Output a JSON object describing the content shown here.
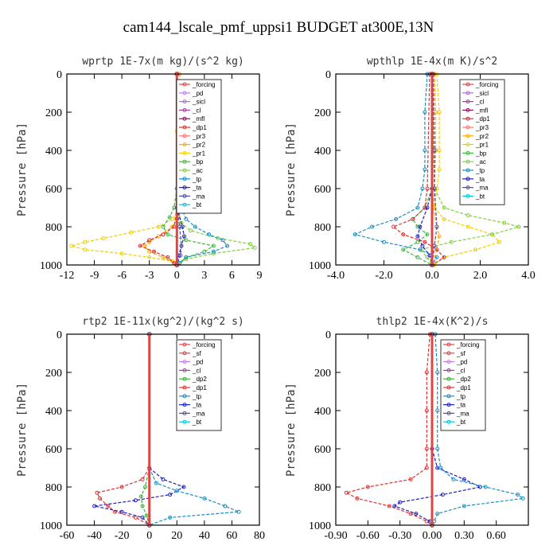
{
  "figure": {
    "title": "cam144_lscale_pmf_uppsi1  BUDGET at300E,13N"
  },
  "colors": {
    "_forcing": "#e04545",
    "_pd": "#c080e0",
    "_sicl": "#b070d0",
    "_cl": "#a040a0",
    "_mfl": "#901060",
    "_dp1": "#e03030",
    "_dp3": "#ff5050",
    "_pr3": "#ff7070",
    "_pr2": "#ffaa00",
    "_pr1": "#f0d000",
    "_bp": "#40b840",
    "_ac": "#80d040",
    "_tp": "#1890c8",
    "_ta": "#2020c0",
    "_ma": "#5050a0",
    "_bt": "#00c8d8",
    "_sf": "#e04545",
    "_dp2": "#38b038"
  },
  "chart_data": [
    {
      "type": "line",
      "title": "wprtp  1E-7x(m kg)/(s^2 kg)",
      "ylabel": "Pressure [hPa]",
      "xlim": [
        -12,
        9
      ],
      "ylim": [
        1000,
        0
      ],
      "xticks": [
        -12,
        -9,
        -6,
        -3,
        0,
        3,
        6,
        9
      ],
      "xtick_labels": [
        "-12",
        "-9",
        "-6",
        "-3",
        "0",
        "3",
        "6",
        "9"
      ],
      "yticks": [
        0,
        200,
        400,
        600,
        800,
        1000
      ],
      "ytick_labels": [
        "0",
        "200",
        "400",
        "600",
        "800",
        "1000"
      ],
      "legend": [
        "_forcing",
        "_pd",
        "_sicl",
        "_cl",
        "_mfl",
        "_dp1",
        "_pr3",
        "_pr2",
        "_pr1",
        "_bp",
        "_ac",
        "_tp",
        "_ta",
        "_ma",
        "_bt"
      ],
      "series": [
        {
          "name": "_pr1",
          "pressure": [
            0,
            300,
            600,
            700,
            760,
            800,
            830,
            860,
            880,
            900,
            920,
            940,
            960,
            980,
            1000
          ],
          "values": [
            0,
            0,
            0.1,
            0.3,
            -0.5,
            -2.0,
            -5.0,
            -8.0,
            -10.0,
            -11.5,
            -10.0,
            -6.0,
            -3.0,
            -0.5,
            0
          ]
        },
        {
          "name": "_pr2",
          "pressure": [
            0,
            300,
            500,
            600,
            700,
            750,
            800,
            850,
            880,
            900,
            930,
            960,
            990,
            1000
          ],
          "values": [
            0.3,
            0.4,
            0.5,
            0.5,
            0.4,
            0.2,
            -0.5,
            -2.0,
            -3.0,
            -3.5,
            -3.0,
            -1.5,
            -0.3,
            0
          ]
        },
        {
          "name": "_dp1",
          "pressure": [
            0,
            700,
            800,
            840,
            870,
            900,
            930,
            960,
            990,
            1000
          ],
          "values": [
            0,
            0,
            -0.3,
            -1.5,
            -3.0,
            -4.0,
            -2.5,
            -1.0,
            -0.3,
            0
          ]
        },
        {
          "name": "_bp",
          "pressure": [
            0,
            600,
            700,
            750,
            800,
            840,
            870,
            900,
            930,
            960,
            990,
            1000
          ],
          "values": [
            0,
            0,
            -0.3,
            -0.8,
            -1.5,
            -1.0,
            1.0,
            4.0,
            3.0,
            1.0,
            0.3,
            0
          ]
        },
        {
          "name": "_ac",
          "pressure": [
            0,
            700,
            780,
            820,
            860,
            890,
            910,
            940,
            970,
            1000
          ],
          "values": [
            0,
            0.1,
            0.5,
            1.5,
            4.5,
            8.0,
            8.5,
            4.0,
            1.0,
            0
          ]
        },
        {
          "name": "_tp",
          "pressure": [
            0,
            600,
            700,
            760,
            800,
            840,
            870,
            900,
            930,
            960,
            990,
            1000
          ],
          "values": [
            0,
            0,
            0.5,
            1.0,
            2.0,
            3.5,
            5.0,
            5.5,
            4.0,
            1.0,
            0.3,
            0
          ]
        },
        {
          "name": "_ta",
          "pressure": [
            0,
            700,
            800,
            850,
            900,
            950,
            1000
          ],
          "values": [
            0,
            0,
            0.6,
            0.8,
            0.5,
            0.2,
            0
          ]
        },
        {
          "name": "_ma",
          "pressure": [
            0,
            700,
            800,
            900,
            950,
            1000
          ],
          "values": [
            0,
            0,
            0.3,
            0.5,
            0.4,
            0
          ]
        },
        {
          "name": "_forcing",
          "pressure": [
            0,
            1000
          ],
          "values": [
            0,
            0
          ]
        }
      ]
    },
    {
      "type": "line",
      "title": "wpthlp  1E-4x(m K)/s^2",
      "ylabel": "Pressure [hPa]",
      "xlim": [
        -4,
        4
      ],
      "ylim": [
        1000,
        0
      ],
      "xticks": [
        -4,
        -2,
        0,
        2,
        4
      ],
      "xtick_labels": [
        "-4.0",
        "-2.0",
        "0.0",
        "2.0",
        "4.0"
      ],
      "yticks": [
        0,
        200,
        400,
        600,
        800,
        1000
      ],
      "ytick_labels": [
        "0",
        "200",
        "400",
        "600",
        "800",
        "1000"
      ],
      "legend": [
        "_forcing",
        "_sicl",
        "_cl",
        "_mfl",
        "_dp1",
        "_pr3",
        "_pr2",
        "_pr1",
        "_bp",
        "_ac",
        "_tp",
        "_ta",
        "_ma",
        "_bt"
      ],
      "series": [
        {
          "name": "_pr1",
          "pressure": [
            0,
            200,
            400,
            500,
            600,
            700,
            760,
            800,
            840,
            880,
            920,
            960,
            1000
          ],
          "values": [
            0.2,
            0.3,
            0.3,
            0.3,
            0.2,
            0.1,
            0.5,
            1.5,
            2.5,
            2.8,
            1.8,
            0.5,
            0.1
          ]
        },
        {
          "name": "_pr2",
          "pressure": [
            0,
            200,
            400,
            600,
            700,
            800,
            850,
            1000
          ],
          "values": [
            0.1,
            0.15,
            0.15,
            0.1,
            0.05,
            0.2,
            0.3,
            0.05
          ]
        },
        {
          "name": "_ac",
          "pressure": [
            0,
            600,
            700,
            740,
            780,
            800,
            840,
            880,
            920,
            960,
            1000
          ],
          "values": [
            0,
            0.1,
            0.5,
            1.5,
            3.0,
            3.6,
            2.5,
            0.8,
            -0.5,
            -0.2,
            0
          ]
        },
        {
          "name": "_bp",
          "pressure": [
            0,
            600,
            700,
            760,
            800,
            840,
            880,
            920,
            960,
            1000
          ],
          "values": [
            0,
            0,
            -0.3,
            -0.8,
            -0.6,
            -0.2,
            -0.6,
            -1.2,
            -0.6,
            0
          ]
        },
        {
          "name": "_dp1",
          "pressure": [
            0,
            600,
            700,
            760,
            800,
            840,
            880,
            920,
            960,
            1000
          ],
          "values": [
            -0.1,
            -0.2,
            -0.3,
            -0.8,
            -1.6,
            -1.2,
            -0.3,
            0.2,
            0.5,
            0
          ]
        },
        {
          "name": "_tp",
          "pressure": [
            0,
            200,
            400,
            500,
            600,
            700,
            760,
            800,
            840,
            880,
            920,
            960,
            1000
          ],
          "values": [
            -0.2,
            -0.3,
            -0.3,
            -0.3,
            -0.4,
            -0.6,
            -1.5,
            -2.5,
            -3.2,
            -2.0,
            -0.5,
            0.2,
            0
          ]
        },
        {
          "name": "_ta",
          "pressure": [
            0,
            600,
            700,
            800,
            850,
            900,
            950,
            1000
          ],
          "values": [
            0,
            0,
            -0.2,
            -0.5,
            -0.6,
            -0.4,
            -0.1,
            0
          ]
        },
        {
          "name": "_ma",
          "pressure": [
            0,
            400,
            600,
            800,
            900,
            1000
          ],
          "values": [
            0.05,
            0.1,
            0.1,
            0.2,
            0.1,
            0
          ]
        },
        {
          "name": "_forcing",
          "pressure": [
            0,
            1000
          ],
          "values": [
            0,
            0
          ]
        }
      ]
    },
    {
      "type": "line",
      "title": "rtp2  1E-11x(kg^2)/(kg^2 s)",
      "ylabel": "Pressure [hPa]",
      "xlim": [
        -60,
        80
      ],
      "ylim": [
        1000,
        0
      ],
      "xticks": [
        -60,
        -40,
        -20,
        0,
        20,
        40,
        60,
        80
      ],
      "xtick_labels": [
        "-60",
        "-40",
        "-20",
        "0",
        "20",
        "40",
        "60",
        "80"
      ],
      "yticks": [
        0,
        200,
        400,
        600,
        800,
        1000
      ],
      "ytick_labels": [
        "0",
        "200",
        "400",
        "600",
        "800",
        "1000"
      ],
      "legend": [
        "_forcing",
        "_sf",
        "_pd",
        "_cl",
        "_dp2",
        "_dp1",
        "_tp",
        "_ta",
        "_ma",
        "_bt"
      ],
      "series": [
        {
          "name": "_dp1",
          "pressure": [
            0,
            700,
            760,
            800,
            830,
            860,
            900,
            930,
            960,
            1000
          ],
          "values": [
            0,
            0,
            -5,
            -20,
            -38,
            -36,
            -30,
            -25,
            -10,
            0
          ]
        },
        {
          "name": "_dp2",
          "pressure": [
            0,
            700,
            800,
            850,
            900,
            950,
            1000
          ],
          "values": [
            0,
            0,
            -3,
            -6,
            -5,
            -2,
            0
          ]
        },
        {
          "name": "_ta",
          "pressure": [
            0,
            700,
            760,
            800,
            840,
            870,
            900,
            930,
            960,
            1000
          ],
          "values": [
            0,
            0,
            10,
            25,
            15,
            -10,
            -40,
            -20,
            -5,
            0
          ]
        },
        {
          "name": "_tp",
          "pressure": [
            0,
            700,
            780,
            820,
            860,
            900,
            930,
            960,
            1000
          ],
          "values": [
            0,
            0,
            5,
            20,
            40,
            55,
            65,
            15,
            0
          ]
        },
        {
          "name": "_forcing",
          "pressure": [
            0,
            1000
          ],
          "values": [
            0,
            0
          ]
        }
      ]
    },
    {
      "type": "line",
      "title": "thlp2  1E-4x(K^2)/s",
      "ylabel": "Pressure [hPa]",
      "xlim": [
        -0.9,
        0.9
      ],
      "ylim": [
        1000,
        0
      ],
      "xticks": [
        -0.9,
        -0.6,
        -0.3,
        0,
        0.3,
        0.6
      ],
      "xtick_labels": [
        "-0.90",
        "-0.60",
        "-0.30",
        "0.00",
        "0.30",
        "0.60"
      ],
      "yticks": [
        0,
        200,
        400,
        600,
        800,
        1000
      ],
      "ytick_labels": [
        "0",
        "200",
        "400",
        "600",
        "800",
        "1000"
      ],
      "legend": [
        "_forcing",
        "_sf",
        "_pd",
        "_cl",
        "_dp2",
        "_dp1",
        "_tp",
        "_ta",
        "_ma",
        "_bt"
      ],
      "series": [
        {
          "name": "_dp1",
          "pressure": [
            0,
            200,
            400,
            600,
            700,
            760,
            800,
            830,
            860,
            900,
            940,
            980,
            1000
          ],
          "values": [
            -0.02,
            -0.05,
            -0.05,
            -0.05,
            -0.05,
            -0.2,
            -0.6,
            -0.8,
            -0.7,
            -0.4,
            -0.2,
            -0.05,
            0
          ]
        },
        {
          "name": "_ta",
          "pressure": [
            0,
            600,
            700,
            760,
            800,
            840,
            880,
            900,
            940,
            980,
            1000
          ],
          "values": [
            0,
            0,
            0.05,
            0.3,
            0.45,
            0.1,
            -0.3,
            -0.35,
            -0.15,
            -0.02,
            0
          ]
        },
        {
          "name": "_tp",
          "pressure": [
            0,
            200,
            400,
            600,
            700,
            760,
            800,
            840,
            860,
            900,
            940,
            980,
            1000
          ],
          "values": [
            0.03,
            0.05,
            0.05,
            0.05,
            0.08,
            0.2,
            0.5,
            0.8,
            0.85,
            0.3,
            0.05,
            0.02,
            0
          ]
        },
        {
          "name": "_forcing",
          "pressure": [
            0,
            1000
          ],
          "values": [
            0,
            0
          ]
        }
      ]
    }
  ]
}
